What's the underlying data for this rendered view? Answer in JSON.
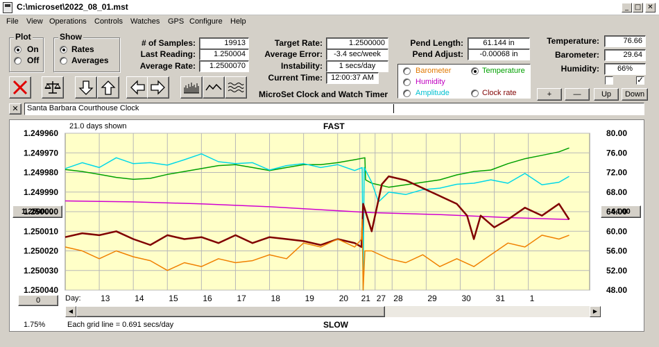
{
  "window": {
    "title": "C:\\microset\\2022_08_01.mst"
  },
  "menu": [
    "File",
    "View",
    "Operations",
    "Controls",
    "Watches",
    "GPS",
    "Configure",
    "Help"
  ],
  "plot_group": {
    "title": "Plot",
    "on": "On",
    "off": "Off",
    "selected": "On"
  },
  "show_group": {
    "title": "Show",
    "rates": "Rates",
    "averages": "Averages",
    "selected": "Rates"
  },
  "stats": {
    "samples_label": "# of Samples:",
    "samples": "19913",
    "last_reading_label": "Last Reading:",
    "last_reading": "1.250004",
    "average_rate_label": "Average Rate:",
    "average_rate": "1.2500070",
    "target_rate_label": "Target Rate:",
    "target_rate": "1.2500000",
    "average_error_label": "Average Error:",
    "average_error": "-3.4 sec/week",
    "instability_label": "Instability:",
    "instability": "1 secs/day",
    "current_time_label": "Current Time:",
    "current_time": "12:00:37 AM",
    "app_name": "MicroSet Clock and Watch Timer",
    "pend_length_label": "Pend Length:",
    "pend_length": "61.144 in",
    "pend_adjust_label": "Pend Adjust:",
    "pend_adjust": "-0.00068 in",
    "temperature_label": "Temperature:",
    "temperature": "76.66",
    "barometer_label": "Barometer:",
    "barometer": "29.64",
    "humidity_label": "Humidity:",
    "humidity": "66%"
  },
  "sensor_options": {
    "barometer": "Barometer",
    "temperature": "Temperature",
    "humidity": "Humidity",
    "amplitude": "Amplitude",
    "clock_rate": "Clock rate",
    "selected": "Temperature",
    "colors": {
      "barometer": "#e07800",
      "temperature": "#00a000",
      "humidity": "#c000c0",
      "amplitude": "#00c0d0",
      "clock_rate": "#800000"
    }
  },
  "adjust_buttons": {
    "plus": "+",
    "minus": "—",
    "up": "Up",
    "down": "Down"
  },
  "watch_name": "Santa Barbara Courthouse Clock",
  "chart_data": {
    "type": "line",
    "days_shown": "21.0 days shown",
    "top_label": "FAST",
    "bottom_label": "SLOW",
    "grid_note": "Each grid line = 0.691 secs/day",
    "percent": "1.75%",
    "left_button": "1.250000",
    "right_button": "64.00",
    "zero_button": "0",
    "left_ticks": [
      "1.249960",
      "1.249970",
      "1.249980",
      "1.249990",
      "1.250000",
      "1.250010",
      "1.250020",
      "1.250030",
      "1.250040"
    ],
    "right_ticks": [
      "80.00",
      "76.00",
      "72.00",
      "68.00",
      "64.00",
      "60.00",
      "56.00",
      "52.00",
      "48.00"
    ],
    "ylim_left": [
      1.24996,
      1.25004
    ],
    "ylim_right": [
      48,
      80
    ],
    "x_label": "Day:",
    "x_ticks": [
      "13",
      "14",
      "15",
      "16",
      "17",
      "18",
      "19",
      "20",
      "21",
      "27",
      "28",
      "29",
      "30",
      "31",
      "1"
    ],
    "grid": true,
    "series": [
      {
        "key": "temperature",
        "color": "#00a000",
        "points": [
          [
            0,
            72.6
          ],
          [
            0.5,
            72.2
          ],
          [
            1,
            71.6
          ],
          [
            1.5,
            71.0
          ],
          [
            2,
            70.6
          ],
          [
            2.5,
            70.8
          ],
          [
            3,
            71.6
          ],
          [
            3.5,
            72.2
          ],
          [
            4,
            72.8
          ],
          [
            4.5,
            73.4
          ],
          [
            5,
            73.6
          ],
          [
            5.5,
            73.0
          ],
          [
            6,
            72.4
          ],
          [
            6.5,
            73.0
          ],
          [
            7,
            73.6
          ],
          [
            7.5,
            73.6
          ],
          [
            8,
            74.0
          ],
          [
            8.5,
            74.6
          ],
          [
            8.8,
            75.0
          ],
          [
            8.82,
            70.5
          ],
          [
            9,
            69.8
          ],
          [
            9.5,
            69.0
          ],
          [
            10,
            69.5
          ],
          [
            10.5,
            70.0
          ],
          [
            11,
            70.5
          ],
          [
            11.5,
            71.5
          ],
          [
            12,
            72.2
          ],
          [
            12.5,
            72.5
          ],
          [
            13,
            73.8
          ],
          [
            13.5,
            74.8
          ],
          [
            14,
            75.5
          ],
          [
            14.5,
            76.2
          ],
          [
            14.8,
            77.0
          ]
        ]
      },
      {
        "key": "amplitude",
        "color": "#00d8e8",
        "points": [
          [
            0,
            72.8
          ],
          [
            0.5,
            74.0
          ],
          [
            1,
            73.0
          ],
          [
            1.5,
            75.0
          ],
          [
            2,
            73.8
          ],
          [
            2.5,
            74.0
          ],
          [
            3,
            73.5
          ],
          [
            3.5,
            74.6
          ],
          [
            4,
            75.8
          ],
          [
            4.5,
            74.2
          ],
          [
            5,
            73.8
          ],
          [
            5.5,
            74.0
          ],
          [
            6,
            72.5
          ],
          [
            6.5,
            73.4
          ],
          [
            7,
            73.8
          ],
          [
            7.5,
            73.0
          ],
          [
            8,
            73.6
          ],
          [
            8.5,
            72.4
          ],
          [
            8.72,
            73.0
          ],
          [
            8.75,
            48.0
          ],
          [
            8.78,
            73.0
          ],
          [
            9,
            70.0
          ],
          [
            9.2,
            66.0
          ],
          [
            9.5,
            68.0
          ],
          [
            10,
            67.5
          ],
          [
            10.5,
            68.5
          ],
          [
            11,
            68.8
          ],
          [
            11.5,
            69.6
          ],
          [
            12,
            69.8
          ],
          [
            12.5,
            70.5
          ],
          [
            13,
            69.8
          ],
          [
            13.5,
            71.8
          ],
          [
            14,
            69.5
          ],
          [
            14.5,
            70.0
          ],
          [
            14.8,
            71.2
          ]
        ]
      },
      {
        "key": "humidity",
        "color": "#d000d0",
        "points": [
          [
            0,
            66.2
          ],
          [
            2,
            66.0
          ],
          [
            4,
            65.6
          ],
          [
            6,
            65.0
          ],
          [
            8,
            64.2
          ],
          [
            9,
            63.8
          ],
          [
            11,
            63.4
          ],
          [
            13,
            62.8
          ],
          [
            14.8,
            62.4
          ]
        ]
      },
      {
        "key": "clock_rate",
        "color": "#800000",
        "points": [
          [
            0,
            1.250013
          ],
          [
            0.5,
            1.250011
          ],
          [
            1,
            1.250012
          ],
          [
            1.5,
            1.25001
          ],
          [
            2,
            1.250014
          ],
          [
            2.5,
            1.250017
          ],
          [
            3,
            1.250012
          ],
          [
            3.5,
            1.250014
          ],
          [
            4,
            1.250013
          ],
          [
            4.5,
            1.250016
          ],
          [
            5,
            1.250012
          ],
          [
            5.5,
            1.250016
          ],
          [
            6,
            1.250013
          ],
          [
            6.5,
            1.250014
          ],
          [
            7,
            1.250015
          ],
          [
            7.5,
            1.250017
          ],
          [
            8,
            1.250014
          ],
          [
            8.5,
            1.250016
          ],
          [
            8.7,
            1.250018
          ],
          [
            8.75,
            1.249996
          ],
          [
            9,
            1.25001
          ],
          [
            9.3,
            1.249986
          ],
          [
            9.5,
            1.249982
          ],
          [
            10,
            1.249984
          ],
          [
            10.5,
            1.249988
          ],
          [
            11,
            1.249992
          ],
          [
            11.5,
            1.249996
          ],
          [
            11.8,
            1.250002
          ],
          [
            12,
            1.250014
          ],
          [
            12.2,
            1.250002
          ],
          [
            12.6,
            1.250008
          ],
          [
            13,
            1.250004
          ],
          [
            13.5,
            1.249998
          ],
          [
            14,
            1.250002
          ],
          [
            14.5,
            1.249996
          ],
          [
            14.8,
            1.250004
          ]
        ]
      },
      {
        "key": "barometer",
        "color": "#f08000",
        "points": [
          [
            0,
            1.250018
          ],
          [
            0.5,
            1.25002
          ],
          [
            1,
            1.250024
          ],
          [
            1.5,
            1.25002
          ],
          [
            2,
            1.250023
          ],
          [
            2.5,
            1.250025
          ],
          [
            3,
            1.25003
          ],
          [
            3.5,
            1.250026
          ],
          [
            4,
            1.250028
          ],
          [
            4.5,
            1.250024
          ],
          [
            5,
            1.250026
          ],
          [
            5.5,
            1.250025
          ],
          [
            6,
            1.250022
          ],
          [
            6.5,
            1.250024
          ],
          [
            7,
            1.250016
          ],
          [
            7.5,
            1.250018
          ],
          [
            8,
            1.250014
          ],
          [
            8.5,
            1.250018
          ],
          [
            8.7,
            1.250014
          ],
          [
            8.72,
            1.250004
          ],
          [
            8.75,
            1.25004
          ],
          [
            8.8,
            1.25002
          ],
          [
            9,
            1.25002
          ],
          [
            9.5,
            1.250024
          ],
          [
            10,
            1.250026
          ],
          [
            10.5,
            1.250022
          ],
          [
            11,
            1.250028
          ],
          [
            11.5,
            1.250024
          ],
          [
            12,
            1.250028
          ],
          [
            12.5,
            1.250022
          ],
          [
            13,
            1.250016
          ],
          [
            13.5,
            1.250018
          ],
          [
            14,
            1.250012
          ],
          [
            14.5,
            1.250014
          ],
          [
            14.8,
            1.250012
          ]
        ]
      }
    ]
  }
}
